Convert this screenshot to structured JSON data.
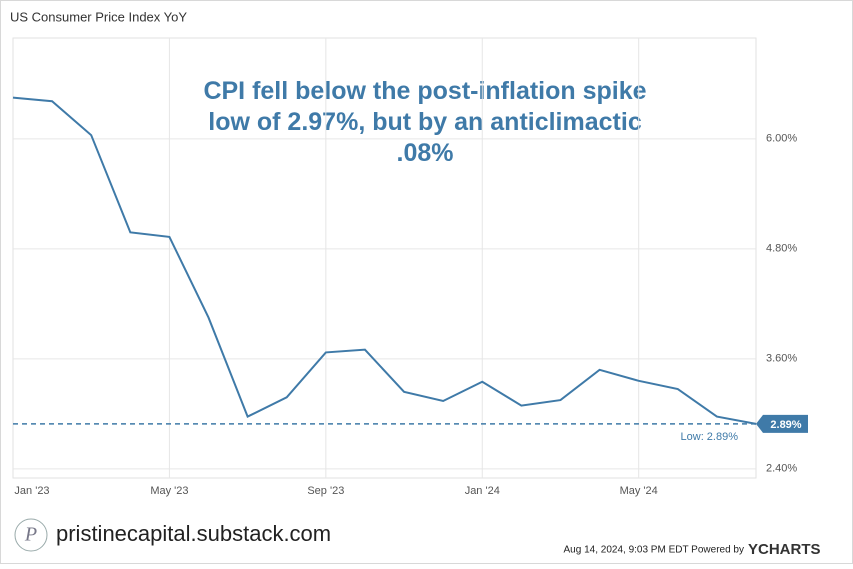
{
  "chart_data": {
    "type": "line",
    "title": "US Consumer Price Index YoY",
    "annotation": "CPI fell below the post-inflation spike low of 2.97%, but by an anticlimactic .08%",
    "categories": [
      "Jan '23",
      null,
      null,
      null,
      "May '23",
      null,
      null,
      null,
      "Sep '23",
      null,
      null,
      null,
      "Jan '24",
      null,
      null,
      null,
      "May '24",
      null,
      null,
      null
    ],
    "series": [
      {
        "name": "US Consumer Price Index YoY",
        "color": "#3f7aa8",
        "values": [
          6.45,
          6.41,
          6.04,
          4.98,
          4.93,
          4.05,
          2.97,
          3.18,
          3.67,
          3.7,
          3.24,
          3.14,
          3.35,
          3.09,
          3.15,
          3.48,
          3.36,
          3.27,
          2.97,
          2.89
        ]
      }
    ],
    "ylim": [
      2.3,
      7.1
    ],
    "yticks": [
      {
        "value": 2.4,
        "label": "2.40%"
      },
      {
        "value": 3.6,
        "label": "3.60%"
      },
      {
        "value": 4.8,
        "label": "4.80%"
      },
      {
        "value": 6.0,
        "label": "6.00%"
      }
    ],
    "grid": true,
    "low_line": {
      "value": 2.89,
      "label": "Low: 2.89%",
      "badge": "2.89%"
    },
    "footer": {
      "source": "pristinecapital.substack.com",
      "timestamp": "Aug 14, 2024, 9:03 PM EDT Powered by",
      "brand": "YCHARTS"
    }
  }
}
